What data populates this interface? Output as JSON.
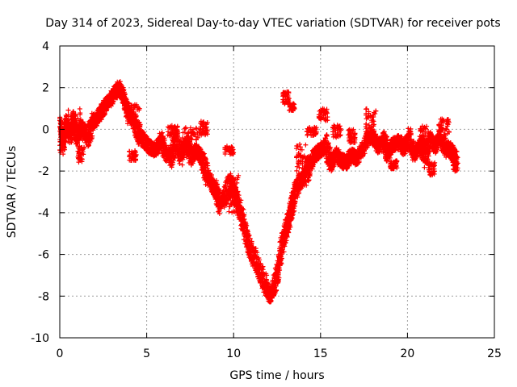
{
  "chart_data": {
    "type": "scatter",
    "title": "Day 314 of 2023, Sidereal Day-to-day VTEC variation (SDTVAR) for receiver pots",
    "xlabel": "GPS time / hours",
    "ylabel": "SDTVAR / TECUs",
    "xlim": [
      0,
      25
    ],
    "ylim": [
      -10,
      4
    ],
    "xticks": [
      0,
      5,
      10,
      15,
      20,
      25
    ],
    "yticks": [
      -10,
      -8,
      -6,
      -4,
      -2,
      0,
      2,
      4
    ],
    "grid": true,
    "marker": "+",
    "series": [
      {
        "name": "SDTVAR",
        "color": "#ff0000",
        "trace": [
          [
            0.0,
            0.3
          ],
          [
            0.2,
            -0.6
          ],
          [
            0.4,
            0.2
          ],
          [
            0.6,
            -0.2
          ],
          [
            0.8,
            0.4
          ],
          [
            1.0,
            -0.3
          ],
          [
            1.3,
            0.1
          ],
          [
            1.6,
            -0.4
          ],
          [
            1.9,
            0.3
          ],
          [
            2.2,
            0.6
          ],
          [
            2.5,
            1.0
          ],
          [
            2.8,
            1.3
          ],
          [
            3.1,
            1.7
          ],
          [
            3.4,
            2.0
          ],
          [
            3.6,
            1.7
          ],
          [
            3.8,
            1.2
          ],
          [
            4.0,
            0.8
          ],
          [
            4.3,
            0.3
          ],
          [
            4.6,
            -0.3
          ],
          [
            4.9,
            -0.6
          ],
          [
            5.2,
            -0.9
          ],
          [
            5.5,
            -1.0
          ],
          [
            5.8,
            -0.6
          ],
          [
            6.1,
            -1.1
          ],
          [
            6.4,
            -1.3
          ],
          [
            6.7,
            -0.6
          ],
          [
            7.0,
            -1.2
          ],
          [
            7.3,
            -0.7
          ],
          [
            7.6,
            -1.3
          ],
          [
            7.9,
            -1.0
          ],
          [
            8.2,
            -1.5
          ],
          [
            8.5,
            -2.2
          ],
          [
            8.8,
            -2.7
          ],
          [
            9.0,
            -3.0
          ],
          [
            9.2,
            -3.6
          ],
          [
            9.5,
            -3.2
          ],
          [
            9.8,
            -2.6
          ],
          [
            10.1,
            -3.2
          ],
          [
            10.4,
            -4.0
          ],
          [
            10.7,
            -5.0
          ],
          [
            11.0,
            -5.8
          ],
          [
            11.3,
            -6.4
          ],
          [
            11.6,
            -7.0
          ],
          [
            11.9,
            -7.6
          ],
          [
            12.1,
            -8.0
          ],
          [
            12.3,
            -7.6
          ],
          [
            12.5,
            -7.0
          ],
          [
            12.7,
            -6.0
          ],
          [
            12.9,
            -5.2
          ],
          [
            13.1,
            -4.6
          ],
          [
            13.3,
            -3.8
          ],
          [
            13.5,
            -3.2
          ],
          [
            13.8,
            -2.6
          ],
          [
            14.1,
            -2.2
          ],
          [
            14.4,
            -1.7
          ],
          [
            14.7,
            -1.2
          ],
          [
            15.0,
            -1.0
          ],
          [
            15.3,
            -0.8
          ],
          [
            15.6,
            -1.6
          ],
          [
            15.9,
            -1.2
          ],
          [
            16.2,
            -1.5
          ],
          [
            16.5,
            -1.6
          ],
          [
            16.8,
            -1.2
          ],
          [
            17.1,
            -1.4
          ],
          [
            17.4,
            -1.0
          ],
          [
            17.7,
            -0.5
          ],
          [
            18.0,
            -0.3
          ],
          [
            18.3,
            -0.8
          ],
          [
            18.6,
            -0.6
          ],
          [
            18.9,
            -1.1
          ],
          [
            19.2,
            -0.7
          ],
          [
            19.5,
            -0.6
          ],
          [
            19.8,
            -0.9
          ],
          [
            20.1,
            -0.4
          ],
          [
            20.4,
            -1.2
          ],
          [
            20.7,
            -0.8
          ],
          [
            21.0,
            -1.3
          ],
          [
            21.3,
            -0.5
          ],
          [
            21.6,
            -0.8
          ],
          [
            21.9,
            -0.3
          ],
          [
            22.2,
            -0.9
          ],
          [
            22.5,
            -1.0
          ],
          [
            22.8,
            -1.4
          ]
        ],
        "bursts": [
          {
            "x": [
              0.0,
              0.3
            ],
            "y": [
              -1.2,
              0.3
            ]
          },
          {
            "x": [
              0.4,
              1.4
            ],
            "y": [
              -0.6,
              1.0
            ]
          },
          {
            "x": [
              1.0,
              1.4
            ],
            "y": [
              -1.6,
              -0.8
            ]
          },
          {
            "x": [
              3.8,
              4.6
            ],
            "y": [
              0.2,
              1.2
            ]
          },
          {
            "x": [
              4.0,
              4.4
            ],
            "y": [
              -1.5,
              -1.0
            ]
          },
          {
            "x": [
              6.2,
              6.8
            ],
            "y": [
              -0.4,
              0.2
            ]
          },
          {
            "x": [
              7.0,
              8.2
            ],
            "y": [
              -0.5,
              0.1
            ]
          },
          {
            "x": [
              8.1,
              8.5
            ],
            "y": [
              -0.3,
              0.4
            ]
          },
          {
            "x": [
              9.5,
              10.0
            ],
            "y": [
              -1.2,
              -0.8
            ]
          },
          {
            "x": [
              9.7,
              10.3
            ],
            "y": [
              -4.0,
              -2.2
            ]
          },
          {
            "x": [
              12.8,
              13.2
            ],
            "y": [
              1.2,
              1.8
            ]
          },
          {
            "x": [
              13.2,
              13.5
            ],
            "y": [
              0.9,
              1.3
            ]
          },
          {
            "x": [
              13.6,
              14.2
            ],
            "y": [
              -2.0,
              -0.7
            ]
          },
          {
            "x": [
              14.2,
              14.8
            ],
            "y": [
              -0.3,
              0.1
            ]
          },
          {
            "x": [
              14.9,
              15.4
            ],
            "y": [
              0.4,
              1.0
            ]
          },
          {
            "x": [
              15.7,
              16.2
            ],
            "y": [
              -0.4,
              0.2
            ]
          },
          {
            "x": [
              16.6,
              17.0
            ],
            "y": [
              -0.7,
              0.0
            ]
          },
          {
            "x": [
              17.6,
              18.2
            ],
            "y": [
              -0.2,
              1.0
            ]
          },
          {
            "x": [
              19.0,
              19.4
            ],
            "y": [
              -1.9,
              -1.5
            ]
          },
          {
            "x": [
              20.7,
              21.1
            ],
            "y": [
              -0.7,
              0.2
            ]
          },
          {
            "x": [
              21.2,
              21.6
            ],
            "y": [
              -2.2,
              -1.6
            ]
          },
          {
            "x": [
              21.8,
              22.4
            ],
            "y": [
              -0.4,
              0.5
            ]
          },
          {
            "x": [
              22.6,
              22.9
            ],
            "y": [
              -2.1,
              -1.2
            ]
          }
        ]
      }
    ]
  }
}
